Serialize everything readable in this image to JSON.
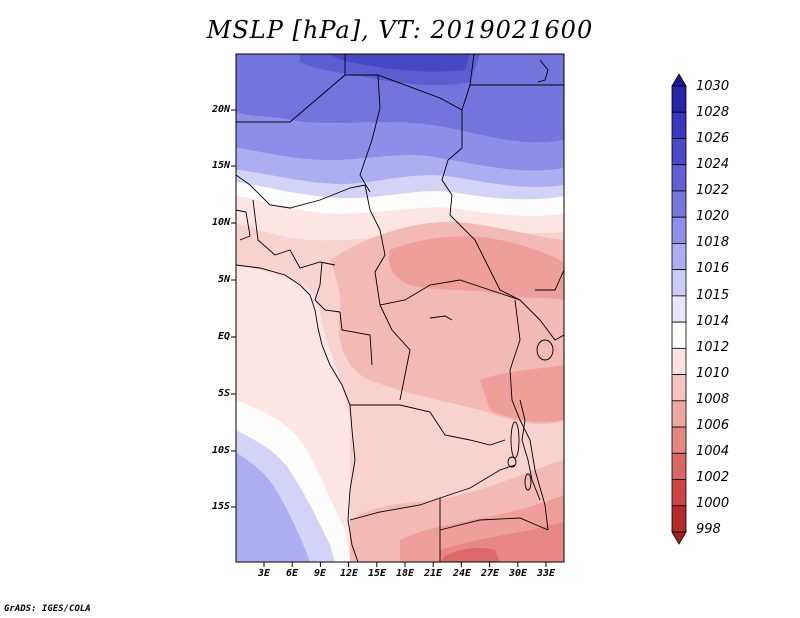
{
  "title": "MSLP [hPa], VT: 2019021600",
  "footer": "GrADS: IGES/COLA",
  "map": {
    "variable": "MSLP",
    "units": "hPa",
    "valid_time": "2019021600",
    "region": "Central / Southern Africa",
    "lat_labels": [
      "20N",
      "15N",
      "10N",
      "5N",
      "EQ",
      "5S",
      "10S",
      "15S"
    ],
    "lon_labels": [
      "3E",
      "6E",
      "9E",
      "12E",
      "15E",
      "18E",
      "21E",
      "24E",
      "27E",
      "30E",
      "33E"
    ]
  },
  "colorbar": {
    "labels": [
      "1030",
      "1028",
      "1026",
      "1024",
      "1022",
      "1020",
      "1018",
      "1016",
      "1015",
      "1014",
      "1012",
      "1010",
      "1008",
      "1006",
      "1004",
      "1002",
      "1000",
      "998"
    ],
    "colors": [
      "#1d1696",
      "#2a23ac",
      "#3b36bf",
      "#4c4acb",
      "#6160d5",
      "#7776e0",
      "#8f8eea",
      "#adaef2",
      "#cccdf7",
      "#e6e7fb",
      "#fdfdfd",
      "#fbe3e1",
      "#f5c4c0",
      "#efa6a1",
      "#e58883",
      "#db6664",
      "#cc4444",
      "#b52a2a",
      "#a81e1e"
    ]
  }
}
